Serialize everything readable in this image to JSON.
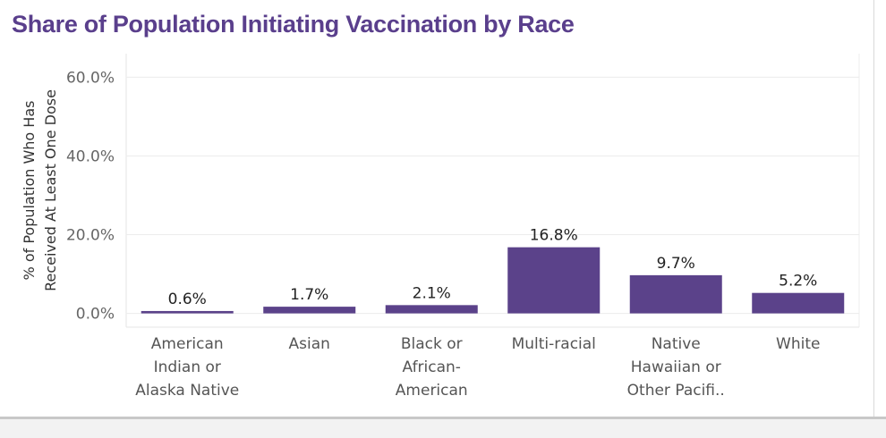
{
  "chart_data": {
    "type": "bar",
    "title": "Share of Population Initiating Vaccination by Race",
    "ylabel": "% of Population Who Has Received At Least One Dose",
    "ylabel_lines": [
      "% of Population Who Has",
      "Received At Least One Dose"
    ],
    "xlabel": "",
    "categories": [
      "American Indian or Alaska Native",
      "Asian",
      "Black or African-American",
      "Multi-racial",
      "Native Hawaiian or Other Pacifi..",
      "White"
    ],
    "category_label_lines": [
      [
        "American",
        "Indian or",
        "Alaska Native"
      ],
      [
        "Asian"
      ],
      [
        "Black or",
        "African-",
        "American"
      ],
      [
        "Multi-racial"
      ],
      [
        "Native",
        "Hawaiian or",
        "Other Pacifi.."
      ],
      [
        "White"
      ]
    ],
    "values": [
      0.6,
      1.7,
      2.1,
      16.8,
      9.7,
      5.2
    ],
    "data_labels": [
      "0.6%",
      "1.7%",
      "2.1%",
      "16.8%",
      "9.7%",
      "5.2%"
    ],
    "yticks": [
      0,
      20,
      40,
      60
    ],
    "ytick_labels": [
      "0.0%",
      "20.0%",
      "40.0%",
      "60.0%"
    ],
    "ylim": [
      -3.5,
      66
    ],
    "grid": true,
    "legend": "none",
    "bar_color": "#5b428a"
  }
}
